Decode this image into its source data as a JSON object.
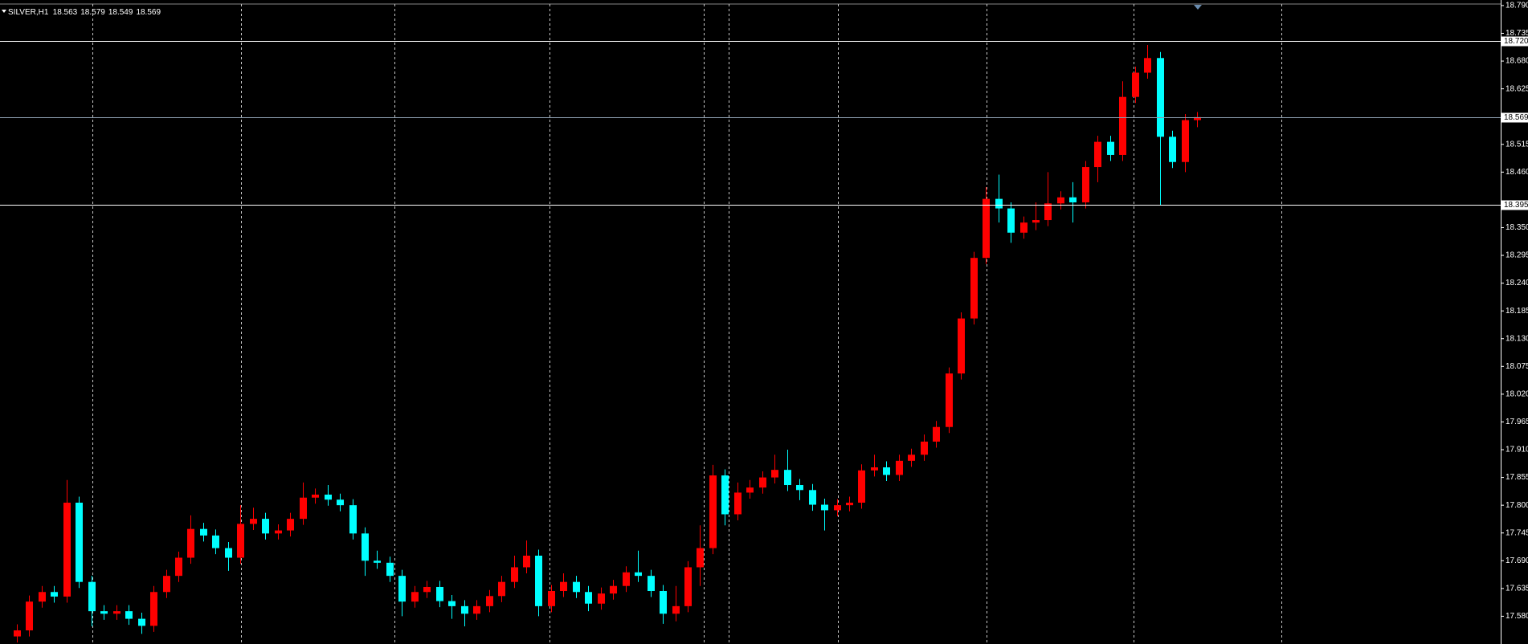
{
  "chart_data": {
    "type": "candlestick",
    "title": "SILVER,H1",
    "ohlc_readout": [
      18.563,
      18.579,
      18.549,
      18.569
    ],
    "up_color": "#ff0000",
    "down_color": "#00ffff",
    "ylim": [
      17.525,
      18.801
    ],
    "yticks": [
      {
        "value": 18.79,
        "label": "18.790"
      },
      18.735,
      {
        "value": 18.68,
        "label": "18.680"
      },
      18.625,
      18.515,
      {
        "value": 18.46,
        "label": "18.460"
      },
      {
        "value": 18.35,
        "label": "18.350"
      },
      18.295,
      {
        "value": 18.24,
        "label": "18.240"
      },
      18.185,
      {
        "value": 18.13,
        "label": "18.130"
      },
      18.075,
      {
        "value": 18.02,
        "label": "18.020"
      },
      17.965,
      {
        "value": 17.91,
        "label": "17.910"
      },
      17.855,
      {
        "value": 17.8,
        "label": "17.800"
      },
      17.745,
      {
        "value": 17.69,
        "label": "17.690"
      },
      17.635,
      {
        "value": 17.58,
        "label": "17.580"
      }
    ],
    "hlines": [
      {
        "value": 18.72,
        "label": "18.720",
        "color": "#ffffff"
      },
      {
        "value": 18.569,
        "label": "18.569",
        "color": "#8899aa"
      },
      {
        "value": 18.395,
        "label": "18.395",
        "color": "#ffffff"
      }
    ],
    "open": [
      17.54,
      17.552,
      17.609,
      17.628,
      17.619,
      17.805,
      17.648,
      17.59,
      17.585,
      17.59,
      17.575,
      17.561,
      17.628,
      17.66,
      17.696,
      17.753,
      17.74,
      17.715,
      17.696,
      17.763,
      17.773,
      17.744,
      17.75,
      17.773,
      17.815,
      17.821,
      17.811,
      17.8,
      17.744,
      17.69,
      17.686,
      17.66,
      17.609,
      17.628,
      17.638,
      17.61,
      17.6,
      17.585,
      17.6,
      17.62,
      17.648,
      17.677,
      17.7,
      17.6,
      17.63,
      17.648,
      17.628,
      17.605,
      17.625,
      17.64,
      17.667,
      17.66,
      17.63,
      17.585,
      17.6,
      17.677,
      17.715,
      17.859,
      17.782,
      17.825,
      17.835,
      17.855,
      17.87,
      17.84,
      17.83,
      17.801,
      17.79,
      17.8,
      17.805,
      17.869,
      17.875,
      17.86,
      17.888,
      17.9,
      17.926,
      17.955,
      18.061,
      18.17,
      18.29,
      18.407,
      18.388,
      18.34,
      18.36,
      18.365,
      18.398,
      18.41,
      18.4,
      18.47,
      18.52,
      18.494,
      18.609,
      18.657,
      18.686,
      18.53,
      18.48,
      18.563
    ],
    "high": [
      17.564,
      17.621,
      17.64,
      17.64,
      17.85,
      17.817,
      17.66,
      17.602,
      17.602,
      17.602,
      17.587,
      17.64,
      17.672,
      17.708,
      17.78,
      17.765,
      17.752,
      17.727,
      17.8,
      17.795,
      17.785,
      17.762,
      17.785,
      17.845,
      17.833,
      17.84,
      17.823,
      17.812,
      17.756,
      17.71,
      17.698,
      17.672,
      17.64,
      17.65,
      17.65,
      17.622,
      17.612,
      17.612,
      17.632,
      17.66,
      17.7,
      17.73,
      17.712,
      17.642,
      17.665,
      17.66,
      17.64,
      17.637,
      17.652,
      17.679,
      17.71,
      17.672,
      17.642,
      17.64,
      17.689,
      17.76,
      17.88,
      17.871,
      17.845,
      17.85,
      17.867,
      17.9,
      17.91,
      17.852,
      17.842,
      17.813,
      17.812,
      17.817,
      17.881,
      17.9,
      17.887,
      17.9,
      17.912,
      17.94,
      17.967,
      18.073,
      18.182,
      18.302,
      18.43,
      18.455,
      18.4,
      18.372,
      18.4,
      18.46,
      18.422,
      18.44,
      18.482,
      18.532,
      18.532,
      18.64,
      18.669,
      18.712,
      18.698,
      18.542,
      18.575,
      18.579
    ],
    "low": [
      17.528,
      17.54,
      17.597,
      17.607,
      17.607,
      17.636,
      17.56,
      17.573,
      17.573,
      17.563,
      17.545,
      17.549,
      17.616,
      17.648,
      17.684,
      17.728,
      17.703,
      17.67,
      17.684,
      17.751,
      17.732,
      17.732,
      17.738,
      17.761,
      17.803,
      17.799,
      17.788,
      17.732,
      17.66,
      17.674,
      17.648,
      17.58,
      17.597,
      17.616,
      17.598,
      17.575,
      17.56,
      17.573,
      17.588,
      17.608,
      17.636,
      17.665,
      17.58,
      17.588,
      17.618,
      17.616,
      17.59,
      17.593,
      17.613,
      17.628,
      17.648,
      17.618,
      17.565,
      17.57,
      17.588,
      17.64,
      17.703,
      17.76,
      17.77,
      17.813,
      17.823,
      17.843,
      17.828,
      17.81,
      17.789,
      17.75,
      17.778,
      17.788,
      17.793,
      17.857,
      17.848,
      17.848,
      17.876,
      17.888,
      17.914,
      17.943,
      18.049,
      18.158,
      18.278,
      18.36,
      18.32,
      18.328,
      18.345,
      18.353,
      18.386,
      18.36,
      18.388,
      18.44,
      18.482,
      18.482,
      18.597,
      18.645,
      18.395,
      18.468,
      18.46,
      18.549
    ],
    "close": [
      17.552,
      17.609,
      17.628,
      17.619,
      17.805,
      17.648,
      17.59,
      17.585,
      17.59,
      17.575,
      17.561,
      17.628,
      17.66,
      17.696,
      17.753,
      17.74,
      17.715,
      17.696,
      17.763,
      17.773,
      17.744,
      17.75,
      17.773,
      17.815,
      17.821,
      17.811,
      17.8,
      17.744,
      17.69,
      17.686,
      17.66,
      17.609,
      17.628,
      17.638,
      17.61,
      17.6,
      17.585,
      17.6,
      17.62,
      17.648,
      17.677,
      17.7,
      17.6,
      17.63,
      17.648,
      17.628,
      17.605,
      17.625,
      17.64,
      17.667,
      17.66,
      17.63,
      17.585,
      17.6,
      17.677,
      17.715,
      17.859,
      17.782,
      17.825,
      17.835,
      17.855,
      17.87,
      17.84,
      17.83,
      17.801,
      17.79,
      17.8,
      17.805,
      17.869,
      17.875,
      17.86,
      17.888,
      17.9,
      17.926,
      17.955,
      18.061,
      18.17,
      18.29,
      18.407,
      18.388,
      18.34,
      18.36,
      18.365,
      18.398,
      18.41,
      18.4,
      18.47,
      18.52,
      18.494,
      18.609,
      18.657,
      18.686,
      18.53,
      18.48,
      18.563,
      18.569
    ]
  }
}
